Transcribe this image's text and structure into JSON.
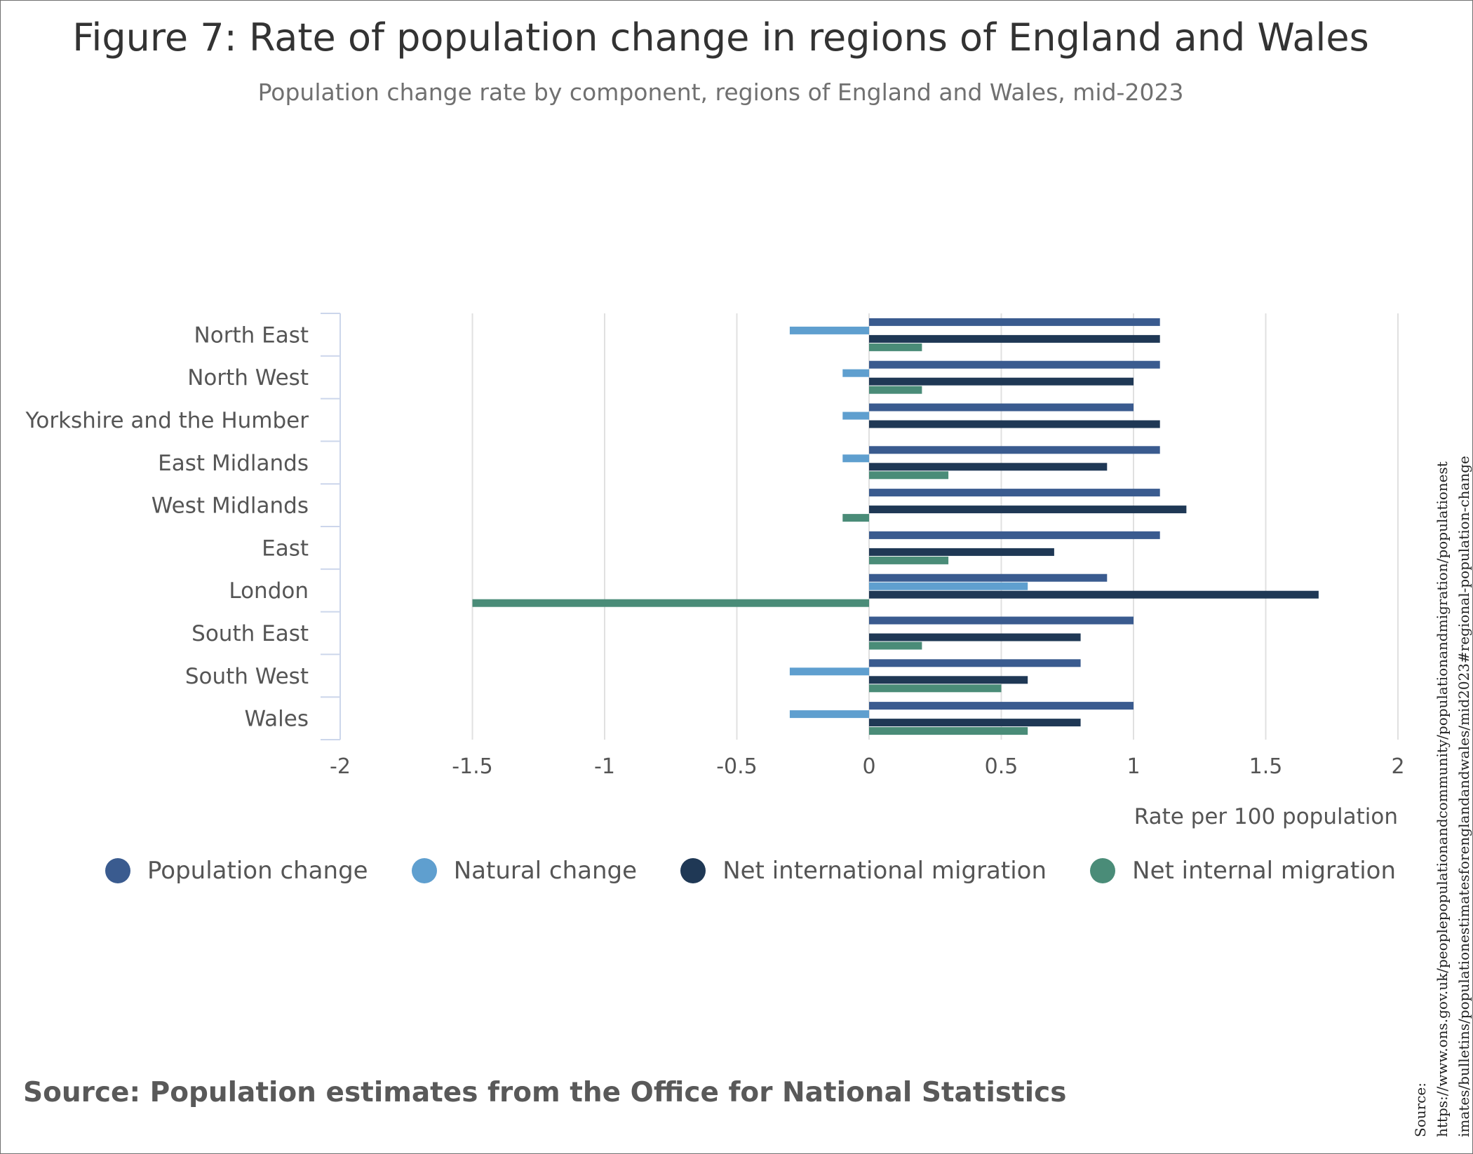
{
  "title": "Figure 7: Rate of population change in regions of England and Wales",
  "subtitle": "Population change rate by component, regions of England and Wales, mid-2023",
  "source_text": "Source: Population estimates from the Office for National Statistics",
  "side_source": {
    "label": "Source:",
    "line1": "https://www.ons.gov.uk/peoplepopulationandcommunity/populationandmigration/populationest",
    "line2": "imates/bulletins/populationestimatesforenglandandwales/mid2023#regional-population-change"
  },
  "chart_data": {
    "type": "bar",
    "orientation": "horizontal",
    "categories": [
      "North East",
      "North West",
      "Yorkshire and the Humber",
      "East Midlands",
      "West Midlands",
      "East",
      "London",
      "South East",
      "South West",
      "Wales"
    ],
    "series": [
      {
        "name": "Population change",
        "color": "#3a5b8f",
        "values": [
          1.1,
          1.1,
          1.0,
          1.1,
          1.1,
          1.1,
          0.9,
          1.0,
          0.8,
          1.0
        ]
      },
      {
        "name": "Natural change",
        "color": "#5f9fcf",
        "values": [
          -0.3,
          -0.1,
          -0.1,
          -0.1,
          0.0,
          0.0,
          0.6,
          0.0,
          -0.3,
          -0.3
        ]
      },
      {
        "name": "Net international migration",
        "color": "#1f3855",
        "values": [
          1.1,
          1.0,
          1.1,
          0.9,
          1.2,
          0.7,
          1.7,
          0.8,
          0.6,
          0.8
        ]
      },
      {
        "name": "Net internal migration",
        "color": "#4a8c78",
        "values": [
          0.2,
          0.2,
          0.0,
          0.3,
          -0.1,
          0.3,
          -1.5,
          0.2,
          0.5,
          0.6
        ]
      }
    ],
    "xlim": [
      -2,
      2
    ],
    "xticks": [
      "-2",
      "-1.5",
      "-1",
      "-0.5",
      "0",
      "0.5",
      "1",
      "1.5",
      "2"
    ],
    "xlabel": "Rate per 100 population",
    "ylabel": "",
    "grid": "vertical",
    "legend_position": "bottom"
  }
}
